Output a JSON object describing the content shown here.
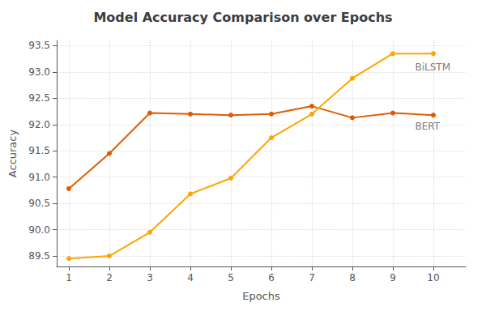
{
  "chart_data": {
    "type": "line",
    "title": "Model Accuracy Comparison over Epochs",
    "xlabel": "Epochs",
    "ylabel": "Accuracy",
    "x": [
      1,
      2,
      3,
      4,
      5,
      6,
      7,
      8,
      9,
      10
    ],
    "series": [
      {
        "color": "#e05c00",
        "marker": "circle",
        "line_style": "solid",
        "values": [
          90.78,
          91.45,
          92.22,
          92.2,
          92.18,
          92.2,
          92.35,
          92.13,
          92.22,
          92.18
        ]
      },
      {
        "color": "#ffa500",
        "marker": "circle",
        "line_style": "solid",
        "values": [
          89.45,
          89.5,
          89.95,
          90.68,
          90.98,
          91.75,
          92.2,
          92.88,
          93.35,
          93.35
        ]
      }
    ],
    "annotations": [
      {
        "text": "BiLSTM",
        "x": 9.55,
        "y": 93.18
      },
      {
        "text": "BERT",
        "x": 9.55,
        "y": 92.06
      }
    ],
    "xlim": [
      0.7,
      10.8
    ],
    "xticks": [
      1,
      2,
      3,
      4,
      5,
      6,
      7,
      8,
      9,
      10
    ],
    "ylim": [
      89.3,
      93.6
    ],
    "yticks": [
      89.5,
      {
        "value": 90,
        "label": "90.0"
      },
      90.5,
      {
        "value": 91,
        "label": "91.0"
      },
      91.5,
      {
        "value": 92,
        "label": "92.0"
      },
      92.5,
      {
        "value": 93,
        "label": "93.0"
      },
      93.5
    ],
    "grid": true
  }
}
